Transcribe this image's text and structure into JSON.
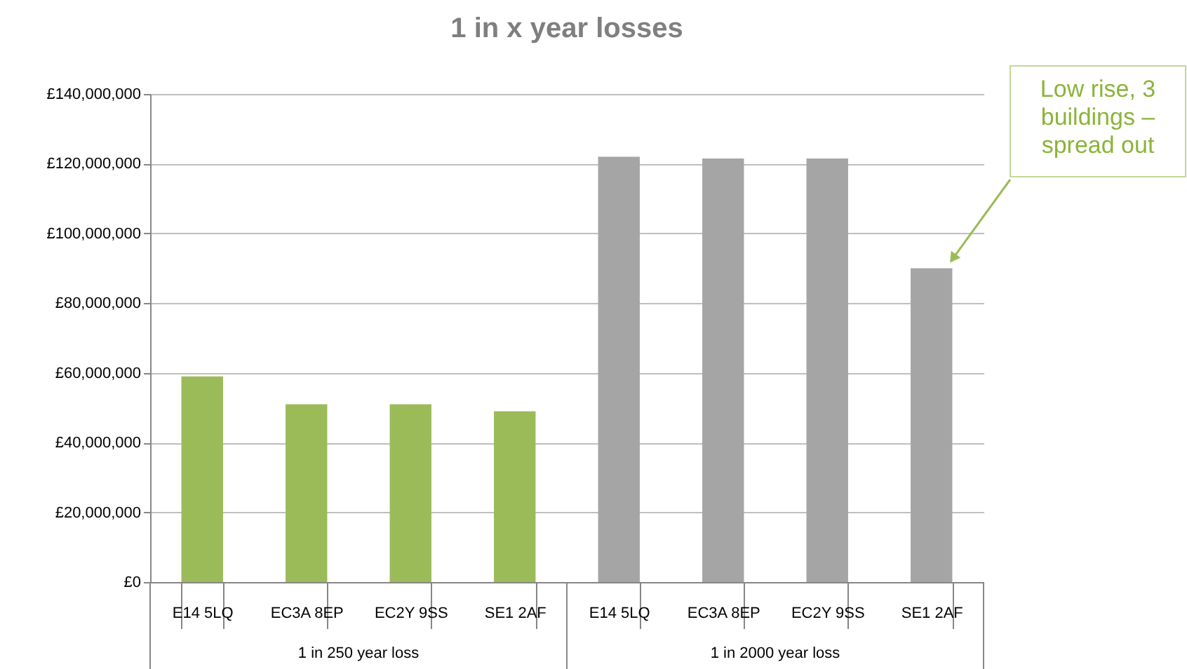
{
  "chart_data": {
    "type": "bar",
    "title": "1 in x year losses",
    "categories": [
      "E14 5LQ",
      "EC3A 8EP",
      "EC2Y 9SS",
      "SE1 2AF",
      "E14 5LQ",
      "EC3A 8EP",
      "EC2Y 9SS",
      "SE1 2AF"
    ],
    "series": [
      {
        "name": "1 in 250 year loss",
        "color": "#9bbb59",
        "values": [
          59000000,
          51000000,
          51000000,
          49000000,
          null,
          null,
          null,
          null
        ]
      },
      {
        "name": "1 in 2000 year loss",
        "color": "#a5a5a5",
        "values": [
          null,
          null,
          null,
          null,
          122000000,
          121500000,
          121500000,
          90000000
        ]
      }
    ],
    "ylim": [
      0,
      140000000
    ],
    "yticks": [
      {
        "value": 0,
        "label": "£0"
      },
      {
        "value": 20000000,
        "label": "£20,000,000"
      },
      {
        "value": 40000000,
        "label": "£40,000,000"
      },
      {
        "value": 60000000,
        "label": "£60,000,000"
      },
      {
        "value": 80000000,
        "label": "£80,000,000"
      },
      {
        "value": 100000000,
        "label": "£100,000,000"
      },
      {
        "value": 120000000,
        "label": "£120,000,000"
      },
      {
        "value": 140000000,
        "label": "£140,000,000"
      }
    ],
    "grid": "y",
    "annotations": [
      "Low rise, 3 buildings – spread out"
    ]
  }
}
